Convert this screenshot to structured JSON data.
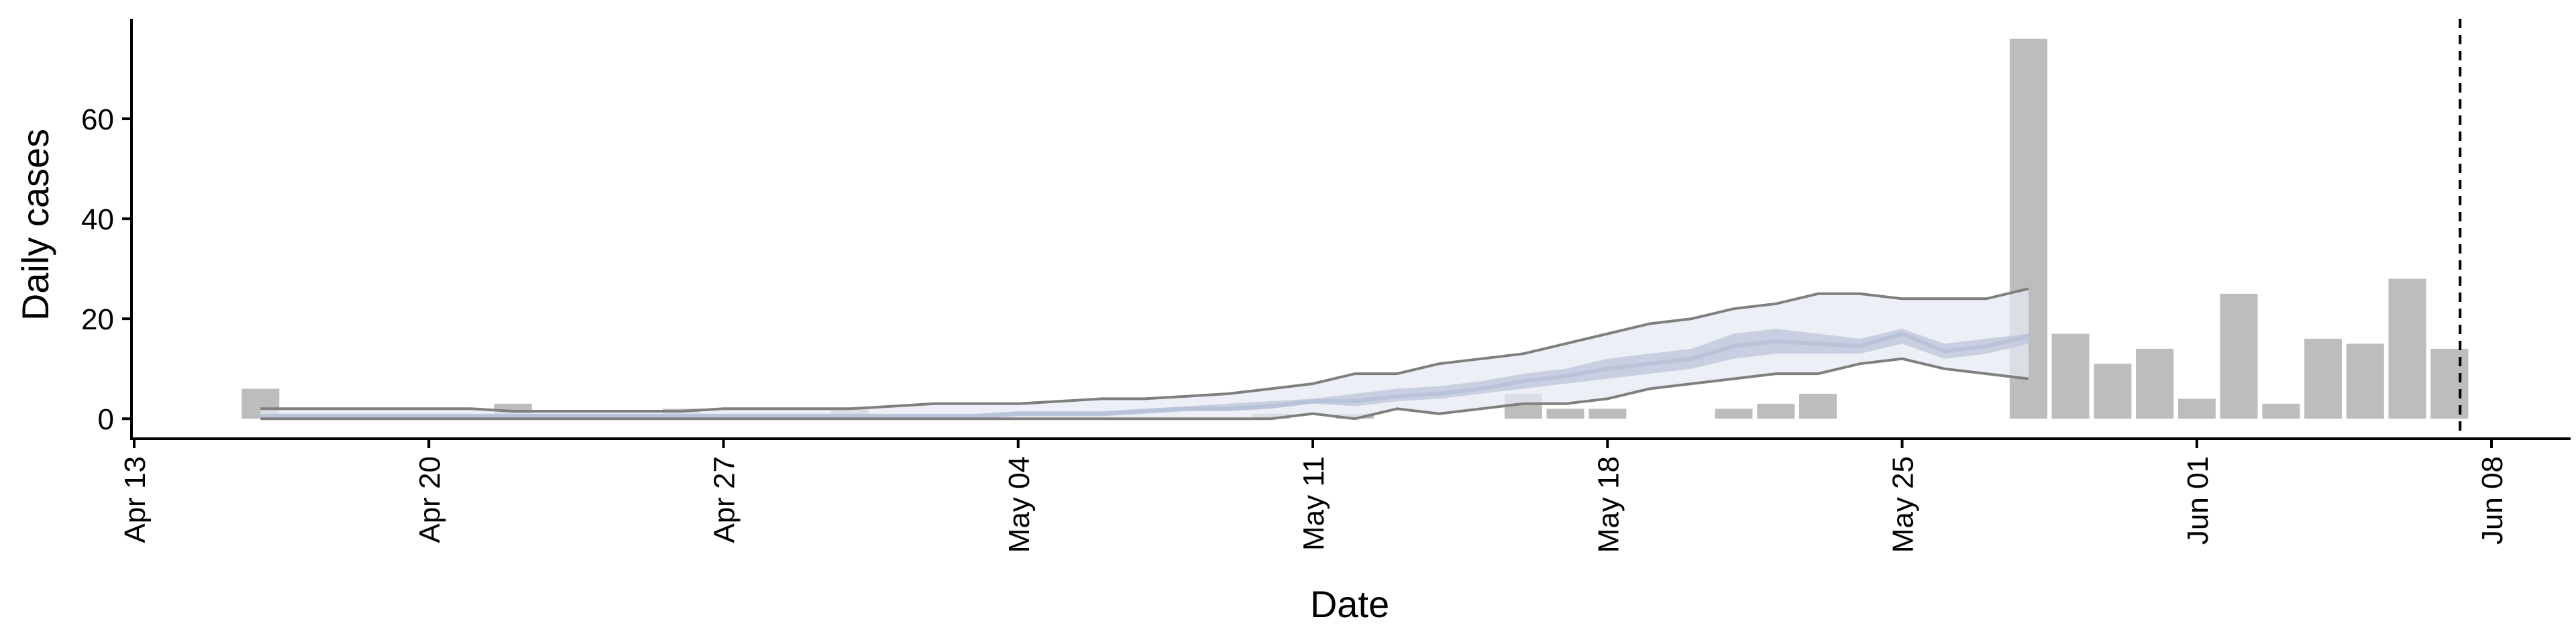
{
  "chart_data": {
    "type": "bar",
    "xlabel": "Date",
    "ylabel": "Daily cases",
    "x_type": "date",
    "xlim": [
      "2020-04-13",
      "2020-06-09"
    ],
    "ylim": [
      -4,
      80
    ],
    "x_ticks": [
      {
        "date": "2020-04-13",
        "label": "Apr 13"
      },
      {
        "date": "2020-04-20",
        "label": "Apr 20"
      },
      {
        "date": "2020-04-27",
        "label": "Apr 27"
      },
      {
        "date": "2020-05-04",
        "label": "May 04"
      },
      {
        "date": "2020-05-11",
        "label": "May 11"
      },
      {
        "date": "2020-05-18",
        "label": "May 18"
      },
      {
        "date": "2020-05-25",
        "label": "May 25"
      },
      {
        "date": "2020-06-01",
        "label": "Jun 01"
      },
      {
        "date": "2020-06-08",
        "label": "Jun 08"
      }
    ],
    "y_ticks": [
      {
        "value": 0,
        "label": "0"
      },
      {
        "value": 20,
        "label": "20"
      },
      {
        "value": 40,
        "label": "40"
      },
      {
        "value": 60,
        "label": "60"
      }
    ],
    "grid": false,
    "legend": "none",
    "colors": {
      "bars": "#bdbdbd",
      "bounds_line": "#7f7f7f",
      "band_outer": "#e6e9f1",
      "band_inner": "#c2c9dc",
      "median_line": "#b9c2d9",
      "cutoff_line": "#000000"
    },
    "bars": [
      {
        "date": "2020-04-16",
        "value": 6
      },
      {
        "date": "2020-04-17",
        "value": 1
      },
      {
        "date": "2020-04-19",
        "value": 1
      },
      {
        "date": "2020-04-22",
        "value": 3
      },
      {
        "date": "2020-04-24",
        "value": 1
      },
      {
        "date": "2020-04-26",
        "value": 2
      },
      {
        "date": "2020-04-28",
        "value": 1
      },
      {
        "date": "2020-04-30",
        "value": 2
      },
      {
        "date": "2020-05-10",
        "value": 1
      },
      {
        "date": "2020-05-12",
        "value": 1
      },
      {
        "date": "2020-05-16",
        "value": 5
      },
      {
        "date": "2020-05-17",
        "value": 2
      },
      {
        "date": "2020-05-18",
        "value": 2
      },
      {
        "date": "2020-05-21",
        "value": 2
      },
      {
        "date": "2020-05-22",
        "value": 3
      },
      {
        "date": "2020-05-23",
        "value": 5
      },
      {
        "date": "2020-05-28",
        "value": 76
      },
      {
        "date": "2020-05-29",
        "value": 17
      },
      {
        "date": "2020-05-30",
        "value": 11
      },
      {
        "date": "2020-05-31",
        "value": 14
      },
      {
        "date": "2020-06-01",
        "value": 4
      },
      {
        "date": "2020-06-02",
        "value": 25
      },
      {
        "date": "2020-06-03",
        "value": 3
      },
      {
        "date": "2020-06-04",
        "value": 16
      },
      {
        "date": "2020-06-05",
        "value": 15
      },
      {
        "date": "2020-06-06",
        "value": 28
      },
      {
        "date": "2020-06-07",
        "value": 14
      }
    ],
    "projection": {
      "dates": [
        "2020-04-16",
        "2020-04-17",
        "2020-04-18",
        "2020-04-19",
        "2020-04-20",
        "2020-04-21",
        "2020-04-22",
        "2020-04-23",
        "2020-04-24",
        "2020-04-25",
        "2020-04-26",
        "2020-04-27",
        "2020-04-28",
        "2020-04-29",
        "2020-04-30",
        "2020-05-01",
        "2020-05-02",
        "2020-05-03",
        "2020-05-04",
        "2020-05-05",
        "2020-05-06",
        "2020-05-07",
        "2020-05-08",
        "2020-05-09",
        "2020-05-10",
        "2020-05-11",
        "2020-05-12",
        "2020-05-13",
        "2020-05-14",
        "2020-05-15",
        "2020-05-16",
        "2020-05-17",
        "2020-05-18",
        "2020-05-19",
        "2020-05-20",
        "2020-05-21",
        "2020-05-22",
        "2020-05-23",
        "2020-05-24",
        "2020-05-25",
        "2020-05-26",
        "2020-05-27",
        "2020-05-28"
      ],
      "upper": [
        2,
        2,
        2,
        2,
        2,
        2,
        1.5,
        1.5,
        1.5,
        1.5,
        1.5,
        2,
        2,
        2,
        2,
        2.5,
        3,
        3,
        3,
        3.5,
        4,
        4,
        4.5,
        5,
        6,
        7,
        9,
        9,
        11,
        12,
        13,
        15,
        17,
        19,
        20,
        22,
        23,
        25,
        25,
        24,
        24,
        24,
        26
      ],
      "upper_inner": [
        1,
        1,
        1,
        1,
        1,
        1,
        1,
        1,
        1,
        1,
        1,
        1,
        1,
        1,
        1,
        1,
        1,
        1,
        1.5,
        1.5,
        1.5,
        2,
        2.5,
        3,
        3.5,
        4,
        5,
        6,
        6.5,
        7.5,
        9,
        10,
        12,
        13,
        14,
        17,
        18,
        17,
        16,
        18,
        15,
        16,
        17
      ],
      "median": [
        0.5,
        0.5,
        0.5,
        0.5,
        0.5,
        0.5,
        0.5,
        0.5,
        0.5,
        0.5,
        0.5,
        0.5,
        0.5,
        0.5,
        0.5,
        0.5,
        0.5,
        0.5,
        1,
        1,
        1,
        1.5,
        2,
        2,
        2.5,
        3.5,
        3.5,
        4.5,
        5,
        6,
        7.5,
        8.5,
        10,
        11,
        12,
        14.5,
        15.5,
        15,
        14.5,
        17,
        13.5,
        14.5,
        16.5
      ],
      "lower_inner": [
        0,
        0,
        0,
        0,
        0,
        0,
        0,
        0,
        0,
        0,
        0,
        0,
        0,
        0,
        0,
        0,
        0,
        0,
        0.5,
        0.5,
        0.5,
        1,
        1.5,
        1.5,
        2,
        3,
        2.5,
        3.5,
        4,
        5,
        6,
        7,
        8,
        9,
        10,
        12,
        13,
        13,
        13,
        15,
        12,
        13,
        15
      ],
      "lower": [
        0,
        0,
        0,
        0,
        0,
        0,
        0,
        0,
        0,
        0,
        0,
        0,
        0,
        0,
        0,
        0,
        0,
        0,
        0,
        0,
        0,
        0,
        0,
        0,
        0,
        1,
        0,
        2,
        1,
        2,
        3,
        3,
        4,
        6,
        7,
        8,
        9,
        9,
        11,
        12,
        10,
        9,
        8
      ]
    },
    "last_projection_date": "2020-05-28",
    "cutoff_date": "2020-06-07"
  }
}
